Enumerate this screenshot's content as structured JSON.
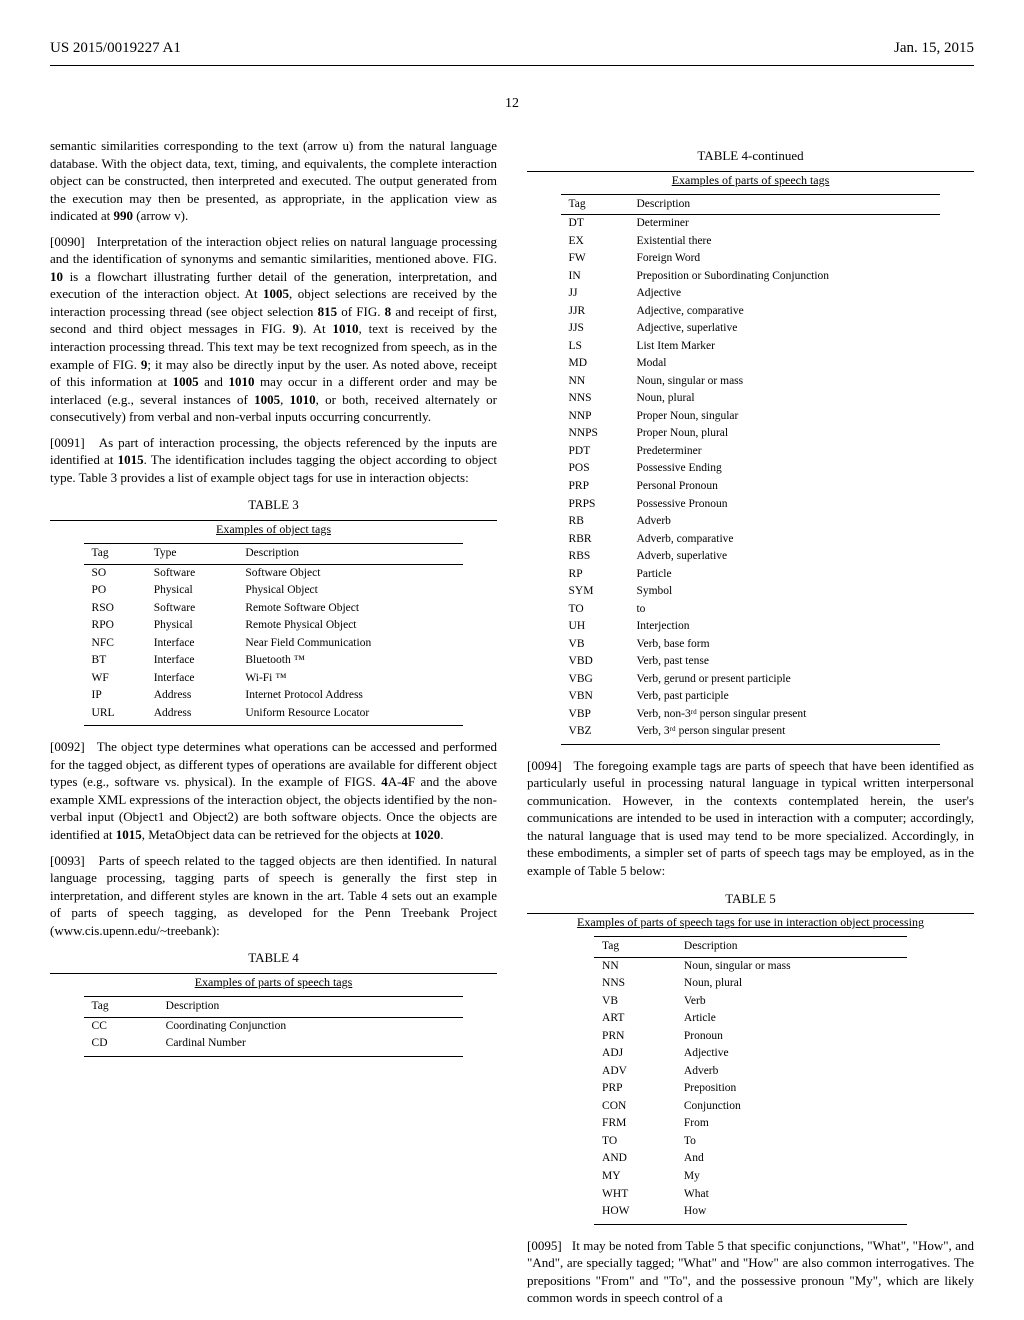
{
  "header": {
    "pub_number": "US 2015/0019227 A1",
    "pub_date": "Jan. 15, 2015",
    "page_number": "12"
  },
  "left_column": {
    "para_a": "semantic similarities corresponding to the text (arrow u) from the natural language database. With the object data, text, timing, and equivalents, the complete interaction object can be constructed, then interpreted and executed. The output generated from the execution may then be presented, as appropriate, in the application view as indicated at ",
    "para_a_bold": "990",
    "para_a_end": " (arrow v).",
    "para_0090_num": "[0090]",
    "para_0090": " Interpretation of the interaction object relies on natural language processing and the identification of synonyms and semantic similarities, mentioned above. FIG. ",
    "para_0090_b1": "10",
    "para_0090_c": " is a flowchart illustrating further detail of the generation, interpretation, and execution of the interaction object. At ",
    "para_0090_b2": "1005",
    "para_0090_d": ", object selections are received by the interaction processing thread (see object selection ",
    "para_0090_b3": "815",
    "para_0090_e": " of FIG. ",
    "para_0090_b4": "8",
    "para_0090_f": " and receipt of first, second and third object messages in FIG. ",
    "para_0090_b5": "9",
    "para_0090_g": "). At ",
    "para_0090_b6": "1010",
    "para_0090_h": ", text is received by the interaction processing thread. This text may be text recognized from speech, as in the example of FIG. ",
    "para_0090_b7": "9",
    "para_0090_i": "; it may also be directly input by the user. As noted above, receipt of this information at ",
    "para_0090_b8": "1005",
    "para_0090_j": " and ",
    "para_0090_b9": "1010",
    "para_0090_k": " may occur in a different order and may be interlaced (e.g., several instances of ",
    "para_0090_b10": "1005",
    "para_0090_l": ", ",
    "para_0090_b11": "1010",
    "para_0090_m": ", or both, received alternately or consecutively) from verbal and non-verbal inputs occurring concurrently.",
    "para_0091_num": "[0091]",
    "para_0091_a": " As part of interaction processing, the objects referenced by the inputs are identified at ",
    "para_0091_b1": "1015",
    "para_0091_b": ". The identification includes tagging the object according to object type. Table 3 provides a list of example object tags for use in interaction objects:",
    "table3": {
      "caption": "TABLE 3",
      "subtitle": "Examples of object tags",
      "headers": [
        "Tag",
        "Type",
        "Description"
      ],
      "rows": [
        [
          "SO",
          "Software",
          "Software Object"
        ],
        [
          "PO",
          "Physical",
          "Physical Object"
        ],
        [
          "RSO",
          "Software",
          "Remote Software Object"
        ],
        [
          "RPO",
          "Physical",
          "Remote Physical Object"
        ],
        [
          "NFC",
          "Interface",
          "Near Field Communication"
        ],
        [
          "BT",
          "Interface",
          "Bluetooth ™"
        ],
        [
          "WF",
          "Interface",
          "Wi-Fi ™"
        ],
        [
          "IP",
          "Address",
          "Internet Protocol Address"
        ],
        [
          "URL",
          "Address",
          "Uniform Resource Locator"
        ]
      ]
    },
    "para_0092_num": "[0092]",
    "para_0092_a": " The object type determines what operations can be accessed and performed for the tagged object, as different types of operations are available for different object types (e.g., software vs. physical). In the example of FIGS. ",
    "para_0092_b1": "4",
    "para_0092_b": "A-",
    "para_0092_b2": "4",
    "para_0092_c": "F and the above example XML expressions of the interaction object, the objects identified by the non-verbal input (Object1 and Object2) are both software objects. Once the objects are identified at ",
    "para_0092_b3": "1015",
    "para_0092_d": ", MetaObject data can be retrieved for the objects at ",
    "para_0092_b4": "1020",
    "para_0092_e": ".",
    "para_0093_num": "[0093]",
    "para_0093": " Parts of speech related to the tagged objects are then identified. In natural language processing, tagging parts of speech is generally the first step in interpretation, and different styles are known in the art. Table 4 sets out an example of parts of speech tagging, as developed for the Penn Treebank Project (www.cis.upenn.edu/~treebank):",
    "table4": {
      "caption": "TABLE 4",
      "subtitle": "Examples of parts of speech tags",
      "headers": [
        "Tag",
        "Description"
      ],
      "rows": [
        [
          "CC",
          "Coordinating Conjunction"
        ],
        [
          "CD",
          "Cardinal Number"
        ]
      ]
    }
  },
  "right_column": {
    "table4cont": {
      "caption": "TABLE 4-continued",
      "subtitle": "Examples of parts of speech tags",
      "headers": [
        "Tag",
        "Description"
      ],
      "rows": [
        [
          "DT",
          "Determiner"
        ],
        [
          "EX",
          "Existential there"
        ],
        [
          "FW",
          "Foreign Word"
        ],
        [
          "IN",
          "Preposition or Subordinating Conjunction"
        ],
        [
          "JJ",
          "Adjective"
        ],
        [
          "JJR",
          "Adjective, comparative"
        ],
        [
          "JJS",
          "Adjective, superlative"
        ],
        [
          "LS",
          "List Item Marker"
        ],
        [
          "MD",
          "Modal"
        ],
        [
          "NN",
          "Noun, singular or mass"
        ],
        [
          "NNS",
          "Noun, plural"
        ],
        [
          "NNP",
          "Proper Noun, singular"
        ],
        [
          "NNPS",
          "Proper Noun, plural"
        ],
        [
          "PDT",
          "Predeterminer"
        ],
        [
          "POS",
          "Possessive Ending"
        ],
        [
          "PRP",
          "Personal Pronoun"
        ],
        [
          "PRPS",
          "Possessive Pronoun"
        ],
        [
          "RB",
          "Adverb"
        ],
        [
          "RBR",
          "Adverb, comparative"
        ],
        [
          "RBS",
          "Adverb, superlative"
        ],
        [
          "RP",
          "Particle"
        ],
        [
          "SYM",
          "Symbol"
        ],
        [
          "TO",
          "to"
        ],
        [
          "UH",
          "Interjection"
        ],
        [
          "VB",
          "Verb, base form"
        ],
        [
          "VBD",
          "Verb, past tense"
        ],
        [
          "VBG",
          "Verb, gerund or present participle"
        ],
        [
          "VBN",
          "Verb, past participle"
        ],
        [
          "VBP",
          "Verb, non-3ʳᵈ person singular present"
        ],
        [
          "VBZ",
          "Verb, 3ʳᵈ person singular present"
        ]
      ]
    },
    "para_0094_num": "[0094]",
    "para_0094": " The foregoing example tags are parts of speech that have been identified as particularly useful in processing natural language in typical written interpersonal communication. However, in the contexts contemplated herein, the user's communications are intended to be used in interaction with a computer; accordingly, the natural language that is used may tend to be more specialized. Accordingly, in these embodiments, a simpler set of parts of speech tags may be employed, as in the example of Table 5 below:",
    "table5": {
      "caption": "TABLE 5",
      "subtitle": "Examples of parts of speech tags for use in interaction object processing",
      "headers": [
        "Tag",
        "Description"
      ],
      "rows": [
        [
          "NN",
          "Noun, singular or mass"
        ],
        [
          "NNS",
          "Noun, plural"
        ],
        [
          "VB",
          "Verb"
        ],
        [
          "ART",
          "Article"
        ],
        [
          "PRN",
          "Pronoun"
        ],
        [
          "ADJ",
          "Adjective"
        ],
        [
          "ADV",
          "Adverb"
        ],
        [
          "PRP",
          "Preposition"
        ],
        [
          "CON",
          "Conjunction"
        ],
        [
          "FRM",
          "From"
        ],
        [
          "TO",
          "To"
        ],
        [
          "AND",
          "And"
        ],
        [
          "MY",
          "My"
        ],
        [
          "WHT",
          "What"
        ],
        [
          "HOW",
          "How"
        ]
      ]
    },
    "para_0095_num": "[0095]",
    "para_0095": " It may be noted from Table 5 that specific conjunctions, \"What\", \"How\", and \"And\", are specially tagged; \"What\" and \"How\" are also common interrogatives. The prepositions \"From\" and \"To\", and the possessive pronoun \"My\", which are likely common words in speech control of a"
  }
}
